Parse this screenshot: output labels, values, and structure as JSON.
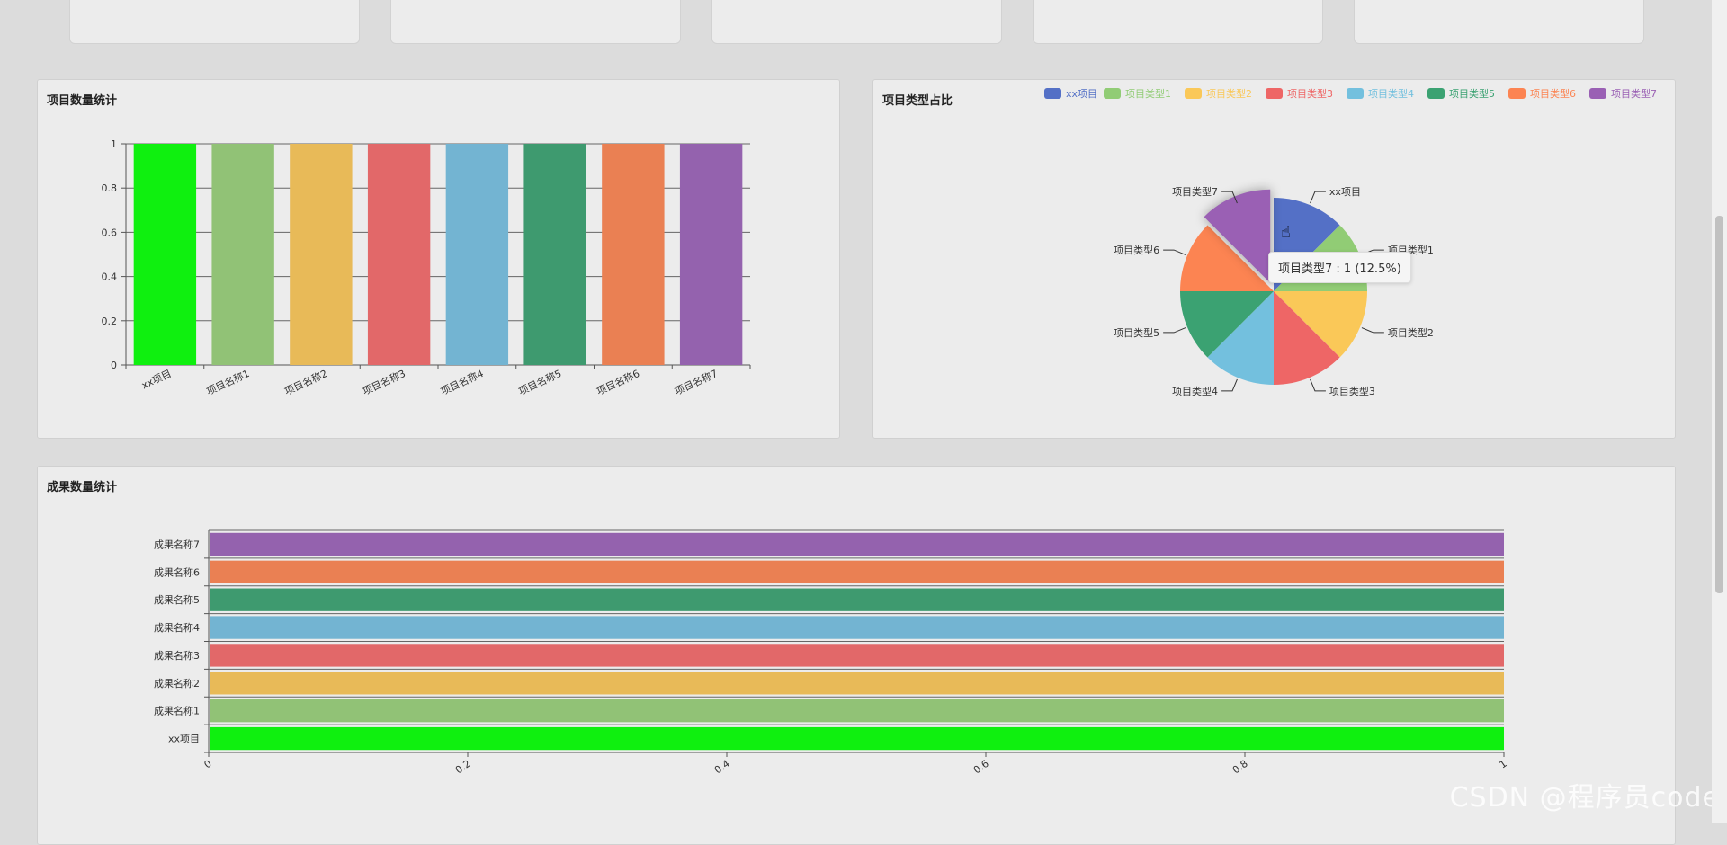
{
  "colors": [
    "#5470c6",
    "#91cc75",
    "#fac858",
    "#ee6666",
    "#73c0de",
    "#3ba272",
    "#fc8452",
    "#9a60b4"
  ],
  "watermark": "CSDN @程序员code",
  "tooltip": "项目类型7 : 1 (12.5%)",
  "panels": {
    "project_count": {
      "title": "项目数量统计"
    },
    "project_type": {
      "title": "项目类型占比"
    },
    "result_count": {
      "title": "成果数量统计"
    }
  },
  "chart_data": [
    {
      "id": "project-bar",
      "type": "bar",
      "title": "项目数量统计",
      "categories": [
        "xx项目",
        "项目名称1",
        "项目名称2",
        "项目名称3",
        "项目名称4",
        "项目名称5",
        "项目名称6",
        "项目名称7"
      ],
      "values": [
        1,
        1,
        1,
        1,
        1,
        1,
        1,
        1
      ],
      "bar_colors": [
        "#0ff00f",
        "#91c276",
        "#e8ba58",
        "#e26869",
        "#73b4d2",
        "#3e9a6f",
        "#ea8053",
        "#9462ae"
      ],
      "ylim": [
        0,
        1
      ],
      "yticks": [
        "0",
        "0.2",
        "0.4",
        "0.6",
        "0.8",
        "1"
      ]
    },
    {
      "id": "project-pie",
      "type": "pie",
      "title": "项目类型占比",
      "labels": [
        "xx项目",
        "项目类型1",
        "项目类型2",
        "项目类型3",
        "项目类型4",
        "项目类型5",
        "项目类型6",
        "项目类型7"
      ],
      "values": [
        1,
        1,
        1,
        1,
        1,
        1,
        1,
        1
      ],
      "legend_position": "top-right",
      "highlighted": "项目类型7"
    },
    {
      "id": "result-hbar",
      "type": "bar",
      "orientation": "horizontal",
      "title": "成果数量统计",
      "categories": [
        "xx项目",
        "成果名称1",
        "成果名称2",
        "成果名称3",
        "成果名称4",
        "成果名称5",
        "成果名称6",
        "成果名称7"
      ],
      "values": [
        1,
        1,
        1,
        1,
        1,
        1,
        1,
        1
      ],
      "bar_colors": [
        "#0ff00f",
        "#91c276",
        "#e8ba58",
        "#e26869",
        "#73b4d2",
        "#3e9a6f",
        "#ea8053",
        "#9462ae"
      ],
      "xlim": [
        0,
        1
      ],
      "xticks": [
        "0",
        "0.2",
        "0.4",
        "0.6",
        "0.8",
        "1"
      ]
    }
  ]
}
